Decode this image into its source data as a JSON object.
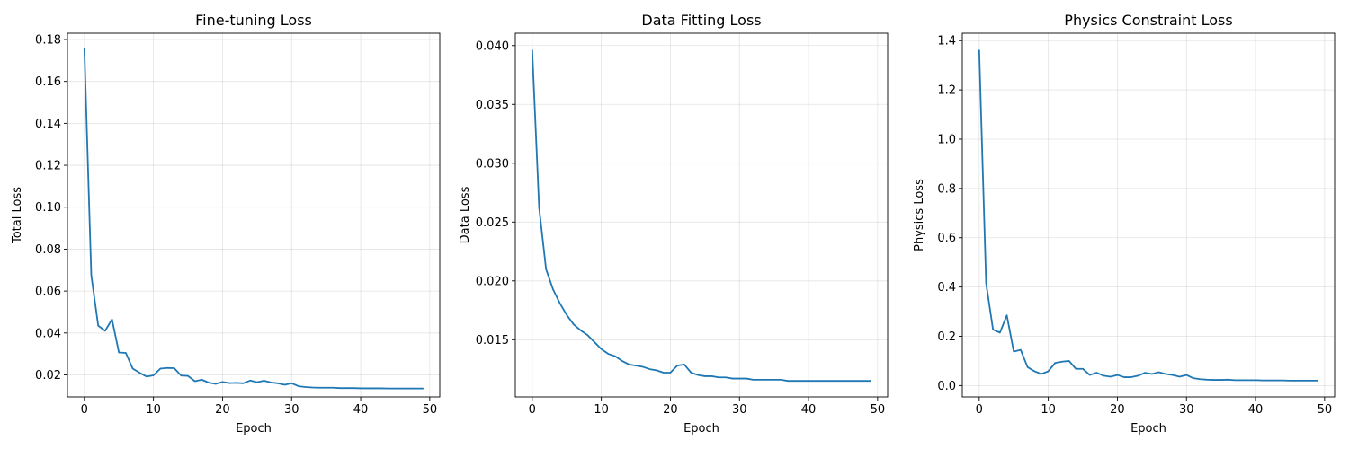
{
  "figure": {
    "background": "#ffffff",
    "line_color": "#1f77b4"
  },
  "chart_data": [
    {
      "type": "line",
      "title": "Fine-tuning Loss",
      "xlabel": "Epoch",
      "ylabel": "Total Loss",
      "grid": true,
      "xlim": [
        -2.45,
        51.45
      ],
      "ylim": [
        0.0095,
        0.183
      ],
      "xticks": [
        0,
        10,
        20,
        30,
        40,
        50
      ],
      "yticks": [
        0.02,
        0.04,
        0.06,
        0.08,
        0.1,
        0.12,
        0.14,
        0.16,
        0.18
      ],
      "ytick_labels": [
        "0.02",
        "0.04",
        "0.06",
        "0.08",
        "0.10",
        "0.12",
        "0.14",
        "0.16",
        "0.18"
      ],
      "series": [
        {
          "x": [
            0,
            1,
            2,
            3,
            4,
            5,
            6,
            7,
            8,
            9,
            10,
            11,
            12,
            13,
            14,
            15,
            16,
            17,
            18,
            19,
            20,
            21,
            22,
            23,
            24,
            25,
            26,
            27,
            28,
            29,
            30,
            31,
            32,
            33,
            34,
            35,
            36,
            37,
            38,
            39,
            40,
            41,
            42,
            43,
            44,
            45,
            46,
            47,
            48,
            49
          ],
          "y": [
            0.1755,
            0.0675,
            0.0435,
            0.041,
            0.0465,
            0.0307,
            0.0305,
            0.023,
            0.021,
            0.0192,
            0.0198,
            0.023,
            0.0233,
            0.0232,
            0.0197,
            0.0195,
            0.017,
            0.0177,
            0.0163,
            0.0157,
            0.0166,
            0.0161,
            0.0162,
            0.016,
            0.0173,
            0.0165,
            0.0172,
            0.0164,
            0.016,
            0.0153,
            0.016,
            0.0146,
            0.0142,
            0.014,
            0.0139,
            0.0139,
            0.0139,
            0.0137,
            0.0137,
            0.0137,
            0.0136,
            0.0136,
            0.0136,
            0.0136,
            0.0135,
            0.0135,
            0.0135,
            0.0135,
            0.0135,
            0.0135
          ]
        }
      ]
    },
    {
      "type": "line",
      "title": "Data Fitting Loss",
      "xlabel": "Epoch",
      "ylabel": "Data Loss",
      "grid": true,
      "xlim": [
        -2.45,
        51.45
      ],
      "ylim": [
        0.01014,
        0.04105
      ],
      "xticks": [
        0,
        10,
        20,
        30,
        40,
        50
      ],
      "yticks": [
        0.015,
        0.02,
        0.025,
        0.03,
        0.035,
        0.04
      ],
      "ytick_labels": [
        "0.015",
        "0.020",
        "0.025",
        "0.030",
        "0.035",
        "0.040"
      ],
      "series": [
        {
          "x": [
            0,
            1,
            2,
            3,
            4,
            5,
            6,
            7,
            8,
            9,
            10,
            11,
            12,
            13,
            14,
            15,
            16,
            17,
            18,
            19,
            20,
            21,
            22,
            23,
            24,
            25,
            26,
            27,
            28,
            29,
            30,
            31,
            32,
            33,
            34,
            35,
            36,
            37,
            38,
            39,
            40,
            41,
            42,
            43,
            44,
            45,
            46,
            47,
            48,
            49
          ],
          "y": [
            0.0396,
            0.0262,
            0.021,
            0.0193,
            0.0181,
            0.0171,
            0.0163,
            0.0158,
            0.0154,
            0.0148,
            0.0142,
            0.0138,
            0.0136,
            0.0132,
            0.0129,
            0.0128,
            0.0127,
            0.0125,
            0.0124,
            0.0122,
            0.0122,
            0.0128,
            0.0129,
            0.0122,
            0.012,
            0.0119,
            0.0119,
            0.0118,
            0.0118,
            0.0117,
            0.0117,
            0.0117,
            0.0116,
            0.0116,
            0.0116,
            0.0116,
            0.0116,
            0.0115,
            0.0115,
            0.0115,
            0.0115,
            0.0115,
            0.0115,
            0.0115,
            0.0115,
            0.0115,
            0.0115,
            0.0115,
            0.0115,
            0.0115
          ]
        }
      ]
    },
    {
      "type": "line",
      "title": "Physics Constraint Loss",
      "xlabel": "Epoch",
      "ylabel": "Physics Loss",
      "grid": true,
      "xlim": [
        -2.45,
        51.45
      ],
      "ylim": [
        -0.046,
        1.43
      ],
      "xticks": [
        0,
        10,
        20,
        30,
        40,
        50
      ],
      "yticks": [
        0.0,
        0.2,
        0.4,
        0.6,
        0.8,
        1.0,
        1.2,
        1.4
      ],
      "ytick_labels": [
        "0.0",
        "0.2",
        "0.4",
        "0.6",
        "0.8",
        "1.0",
        "1.2",
        "1.4"
      ],
      "series": [
        {
          "x": [
            0,
            1,
            2,
            3,
            4,
            5,
            6,
            7,
            8,
            9,
            10,
            11,
            12,
            13,
            14,
            15,
            16,
            17,
            18,
            19,
            20,
            21,
            22,
            23,
            24,
            25,
            26,
            27,
            28,
            29,
            30,
            31,
            32,
            33,
            34,
            35,
            36,
            37,
            38,
            39,
            40,
            41,
            42,
            43,
            44,
            45,
            46,
            47,
            48,
            49
          ],
          "y": [
            1.36,
            0.415,
            0.227,
            0.215,
            0.285,
            0.138,
            0.145,
            0.075,
            0.058,
            0.047,
            0.058,
            0.092,
            0.097,
            0.1,
            0.068,
            0.068,
            0.043,
            0.052,
            0.04,
            0.036,
            0.043,
            0.034,
            0.034,
            0.04,
            0.052,
            0.047,
            0.054,
            0.047,
            0.043,
            0.036,
            0.043,
            0.03,
            0.026,
            0.024,
            0.023,
            0.023,
            0.024,
            0.022,
            0.022,
            0.022,
            0.022,
            0.021,
            0.021,
            0.021,
            0.021,
            0.02,
            0.02,
            0.02,
            0.02,
            0.02
          ]
        }
      ]
    }
  ]
}
